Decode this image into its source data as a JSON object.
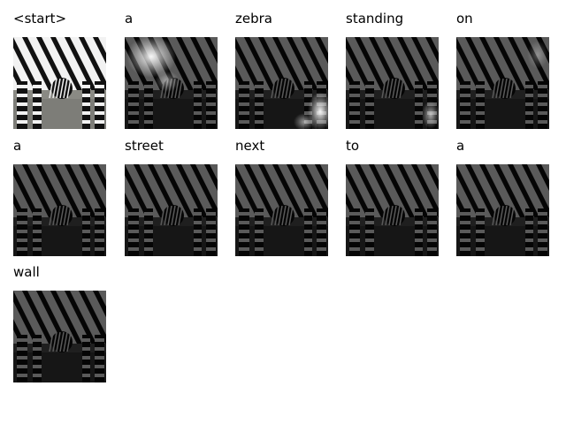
{
  "grid": {
    "cells": [
      {
        "word": "<start>",
        "image_kind": "original",
        "highlight": null
      },
      {
        "word": "a",
        "image_kind": "attention",
        "highlight": "top-left"
      },
      {
        "word": "zebra",
        "image_kind": "attention",
        "highlight": "bottom-right"
      },
      {
        "word": "standing",
        "image_kind": "attention",
        "highlight": "bottom-right-faint"
      },
      {
        "word": "on",
        "image_kind": "attention",
        "highlight": "top-right-faint"
      },
      {
        "word": "a",
        "image_kind": "attention",
        "highlight": null
      },
      {
        "word": "street",
        "image_kind": "attention",
        "highlight": null
      },
      {
        "word": "next",
        "image_kind": "attention",
        "highlight": null
      },
      {
        "word": "to",
        "image_kind": "attention",
        "highlight": null
      },
      {
        "word": "a",
        "image_kind": "attention",
        "highlight": null
      },
      {
        "word": "wall",
        "image_kind": "attention",
        "highlight": null
      }
    ]
  }
}
